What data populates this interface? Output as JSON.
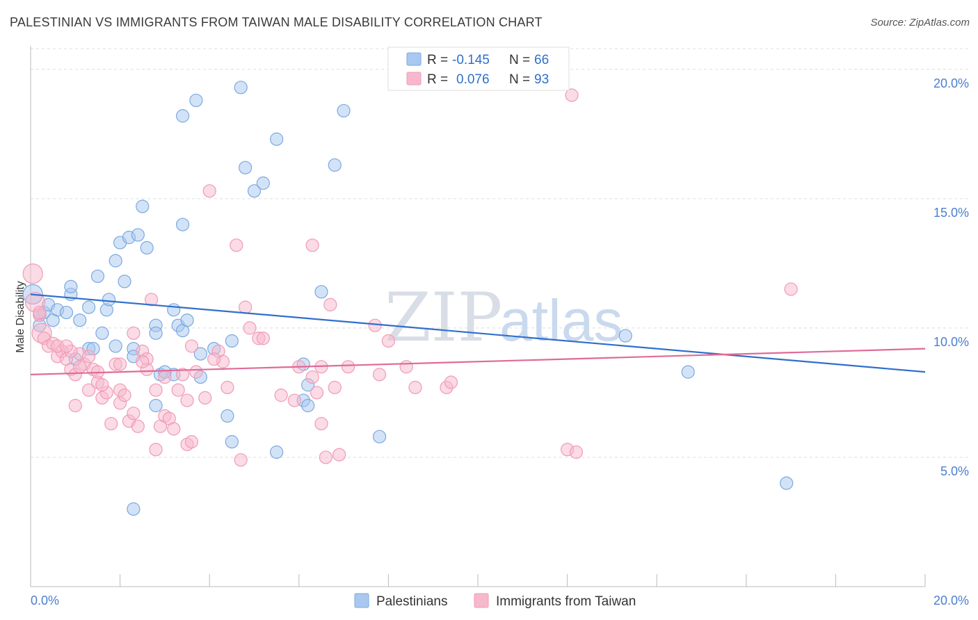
{
  "title": "PALESTINIAN VS IMMIGRANTS FROM TAIWAN MALE DISABILITY CORRELATION CHART",
  "source": "Source: ZipAtlas.com",
  "watermark": {
    "part1": "ZIP",
    "part2": "atlas"
  },
  "legend": {
    "rows": [
      {
        "r_label": "R =",
        "r_value": "-0.145",
        "n_label": "N =",
        "n_value": "66",
        "color": "#a8c8f0"
      },
      {
        "r_label": "R =",
        "r_value": "0.076",
        "n_label": "N =",
        "n_value": "93",
        "color": "#f8b8cc"
      }
    ]
  },
  "bottom_legend": [
    {
      "label": "Palestinians",
      "color": "#a8c8f0"
    },
    {
      "label": "Immigrants from Taiwan",
      "color": "#f8b8cc"
    }
  ],
  "chart_data": {
    "type": "scatter",
    "xlabel": "",
    "ylabel": "Male Disability",
    "xlim": [
      0,
      20
    ],
    "ylim": [
      0,
      20.8
    ],
    "x_tick_labels": [
      {
        "value": 0,
        "label": "0.0%"
      },
      {
        "value": 20,
        "label": "20.0%"
      }
    ],
    "y_tick_labels": [
      {
        "value": 5,
        "label": "5.0%"
      },
      {
        "value": 10,
        "label": "10.0%"
      },
      {
        "value": 15,
        "label": "15.0%"
      },
      {
        "value": 20,
        "label": "20.0%"
      }
    ],
    "series": [
      {
        "name": "Palestinians",
        "color": "#7aa8e0",
        "fill": "#a8c8f0",
        "trend": {
          "x": [
            0,
            20
          ],
          "y": [
            11.3,
            8.3
          ],
          "color": "#2f6fcc"
        },
        "points": [
          [
            0.05,
            11.3
          ],
          [
            0.2,
            10.5
          ],
          [
            0.3,
            10.6
          ],
          [
            0.4,
            10.9
          ],
          [
            0.5,
            10.3
          ],
          [
            0.6,
            10.7
          ],
          [
            0.2,
            10.1
          ],
          [
            0.8,
            10.6
          ],
          [
            0.9,
            11.3
          ],
          [
            0.9,
            11.6
          ],
          [
            1.1,
            10.3
          ],
          [
            1.3,
            10.8
          ],
          [
            1.5,
            12.0
          ],
          [
            1.7,
            10.7
          ],
          [
            1.75,
            11.1
          ],
          [
            1.6,
            9.8
          ],
          [
            1.9,
            12.6
          ],
          [
            2.0,
            13.3
          ],
          [
            2.1,
            11.8
          ],
          [
            2.2,
            13.5
          ],
          [
            2.4,
            13.6
          ],
          [
            2.5,
            14.7
          ],
          [
            2.3,
            9.2
          ],
          [
            2.3,
            8.9
          ],
          [
            2.6,
            13.1
          ],
          [
            2.8,
            10.1
          ],
          [
            2.8,
            9.8
          ],
          [
            2.8,
            7.0
          ],
          [
            2.9,
            8.2
          ],
          [
            3.2,
            10.7
          ],
          [
            3.3,
            10.1
          ],
          [
            3.4,
            14.0
          ],
          [
            3.4,
            9.9
          ],
          [
            3.5,
            10.3
          ],
          [
            3.2,
            8.2
          ],
          [
            3.8,
            9.0
          ],
          [
            3.8,
            8.1
          ],
          [
            4.1,
            9.2
          ],
          [
            4.4,
            6.6
          ],
          [
            4.5,
            9.5
          ],
          [
            4.5,
            5.6
          ],
          [
            4.8,
            16.2
          ],
          [
            5.0,
            15.3
          ],
          [
            5.2,
            15.6
          ],
          [
            5.5,
            17.3
          ],
          [
            5.5,
            5.2
          ],
          [
            6.1,
            8.6
          ],
          [
            6.1,
            7.2
          ],
          [
            6.2,
            7.0
          ],
          [
            6.2,
            7.8
          ],
          [
            6.5,
            11.4
          ],
          [
            6.8,
            16.3
          ],
          [
            7.0,
            18.4
          ],
          [
            3.7,
            18.8
          ],
          [
            3.4,
            18.2
          ],
          [
            4.7,
            19.3
          ],
          [
            1.0,
            8.8
          ],
          [
            1.3,
            9.2
          ],
          [
            1.4,
            9.2
          ],
          [
            1.9,
            9.3
          ],
          [
            7.8,
            5.8
          ],
          [
            13.3,
            9.7
          ],
          [
            14.7,
            8.3
          ],
          [
            16.9,
            4.0
          ],
          [
            2.3,
            3.0
          ],
          [
            3.0,
            8.3
          ]
        ]
      },
      {
        "name": "Immigrants from Taiwan",
        "color": "#f09ab6",
        "fill": "#f8b8cc",
        "trend": {
          "x": [
            0,
            20
          ],
          "y": [
            8.2,
            9.2
          ],
          "color": "#e06a98"
        },
        "points": [
          [
            0.05,
            12.1
          ],
          [
            0.1,
            11.0
          ],
          [
            0.2,
            10.5
          ],
          [
            0.25,
            9.8
          ],
          [
            0.3,
            9.6
          ],
          [
            0.4,
            9.3
          ],
          [
            0.5,
            9.4
          ],
          [
            0.6,
            8.9
          ],
          [
            0.7,
            9.1
          ],
          [
            0.8,
            8.8
          ],
          [
            0.9,
            8.4
          ],
          [
            1.0,
            8.2
          ],
          [
            1.0,
            7.0
          ],
          [
            1.1,
            9.0
          ],
          [
            1.2,
            8.6
          ],
          [
            1.3,
            8.9
          ],
          [
            1.3,
            7.6
          ],
          [
            1.4,
            8.4
          ],
          [
            1.5,
            7.9
          ],
          [
            1.6,
            7.3
          ],
          [
            1.7,
            7.5
          ],
          [
            1.8,
            6.3
          ],
          [
            1.9,
            8.6
          ],
          [
            2.0,
            7.6
          ],
          [
            2.0,
            7.1
          ],
          [
            2.1,
            7.4
          ],
          [
            2.2,
            6.4
          ],
          [
            2.3,
            6.7
          ],
          [
            2.4,
            6.2
          ],
          [
            2.3,
            9.8
          ],
          [
            2.5,
            9.1
          ],
          [
            2.6,
            8.8
          ],
          [
            2.6,
            8.4
          ],
          [
            2.7,
            11.1
          ],
          [
            2.8,
            7.6
          ],
          [
            2.8,
            5.3
          ],
          [
            2.9,
            6.2
          ],
          [
            3.0,
            6.6
          ],
          [
            3.1,
            6.5
          ],
          [
            3.2,
            6.1
          ],
          [
            3.3,
            7.6
          ],
          [
            3.4,
            8.2
          ],
          [
            3.5,
            7.2
          ],
          [
            3.5,
            5.5
          ],
          [
            3.6,
            5.6
          ],
          [
            3.7,
            8.3
          ],
          [
            3.9,
            7.3
          ],
          [
            4.0,
            15.3
          ],
          [
            4.2,
            9.1
          ],
          [
            4.3,
            8.7
          ],
          [
            4.4,
            7.7
          ],
          [
            4.6,
            13.2
          ],
          [
            4.8,
            10.8
          ],
          [
            4.9,
            10.0
          ],
          [
            5.1,
            9.6
          ],
          [
            5.6,
            7.4
          ],
          [
            5.9,
            7.2
          ],
          [
            6.0,
            8.5
          ],
          [
            6.3,
            8.1
          ],
          [
            6.4,
            7.5
          ],
          [
            6.5,
            6.3
          ],
          [
            6.5,
            8.5
          ],
          [
            6.7,
            10.9
          ],
          [
            6.8,
            7.7
          ],
          [
            6.9,
            5.1
          ],
          [
            7.1,
            8.5
          ],
          [
            7.7,
            10.1
          ],
          [
            7.8,
            8.2
          ],
          [
            8.0,
            9.5
          ],
          [
            8.4,
            8.5
          ],
          [
            8.6,
            7.7
          ],
          [
            9.3,
            7.7
          ],
          [
            9.4,
            7.9
          ],
          [
            12.0,
            5.3
          ],
          [
            12.2,
            5.2
          ],
          [
            17.0,
            11.5
          ],
          [
            4.7,
            4.9
          ],
          [
            6.6,
            5.0
          ],
          [
            6.3,
            13.2
          ],
          [
            1.5,
            8.3
          ],
          [
            0.6,
            9.3
          ],
          [
            1.1,
            8.5
          ],
          [
            0.9,
            9.1
          ],
          [
            2.5,
            8.7
          ],
          [
            3.0,
            8.1
          ],
          [
            1.6,
            7.8
          ],
          [
            2.0,
            8.6
          ],
          [
            5.2,
            9.6
          ],
          [
            3.6,
            9.3
          ],
          [
            4.1,
            8.8
          ],
          [
            0.8,
            9.3
          ],
          [
            0.2,
            10.6
          ],
          [
            12.1,
            19.0
          ]
        ]
      }
    ]
  }
}
